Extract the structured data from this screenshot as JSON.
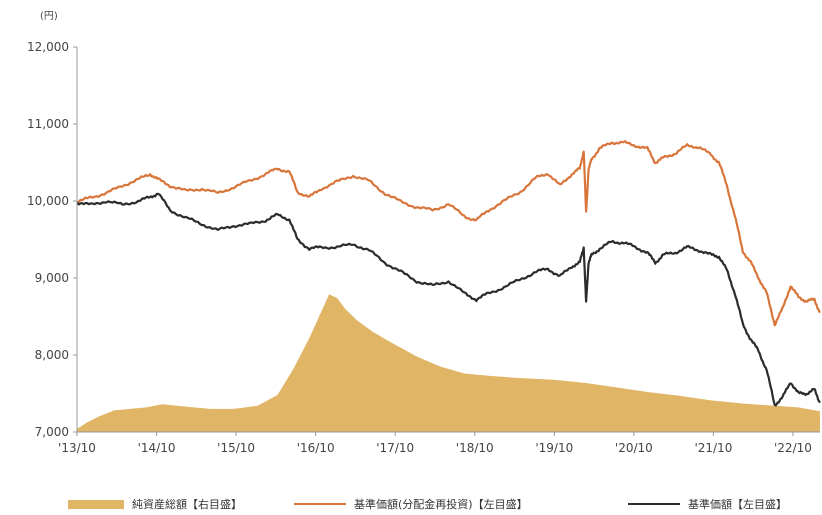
{
  "chart_data": {
    "type": "area",
    "unit_label": "(円)",
    "ylim": [
      7000,
      12000
    ],
    "y_ticks": [
      {
        "v": 7000,
        "label": "7,000"
      },
      {
        "v": 8000,
        "label": "8,000"
      },
      {
        "v": 9000,
        "label": "9,000"
      },
      {
        "v": 10000,
        "label": "10,000"
      },
      {
        "v": 11000,
        "label": "11,000"
      },
      {
        "v": 12000,
        "label": "12,000"
      }
    ],
    "xlim": [
      2013.83,
      2023.17
    ],
    "x_ticks": [
      {
        "v": 2013.83,
        "label": "'13/10"
      },
      {
        "v": 2014.83,
        "label": "'14/10"
      },
      {
        "v": 2015.83,
        "label": "'15/10"
      },
      {
        "v": 2016.83,
        "label": "'16/10"
      },
      {
        "v": 2017.83,
        "label": "'17/10"
      },
      {
        "v": 2018.83,
        "label": "'18/10"
      },
      {
        "v": 2019.83,
        "label": "'19/10"
      },
      {
        "v": 2020.83,
        "label": "'20/10"
      },
      {
        "v": 2021.83,
        "label": "'21/10"
      },
      {
        "v": 2022.83,
        "label": "'22/10"
      }
    ],
    "colors": {
      "area": "#e0b566",
      "orange": "#d8753a",
      "dark": "#2c2c2c",
      "axis": "#999999"
    },
    "series": [
      {
        "name": "純資産総額【右目盛】",
        "kind": "area",
        "x": [
          2013.83,
          2013.95,
          2014.1,
          2014.3,
          2014.5,
          2014.7,
          2014.9,
          2015.2,
          2015.5,
          2015.8,
          2016.1,
          2016.35,
          2016.55,
          2016.75,
          2016.9,
          2017.0,
          2017.1,
          2017.2,
          2017.35,
          2017.55,
          2017.8,
          2018.1,
          2018.4,
          2018.7,
          2019.0,
          2019.4,
          2019.8,
          2020.2,
          2020.6,
          2021.0,
          2021.4,
          2021.8,
          2022.2,
          2022.6,
          2022.9,
          2023.17
        ],
        "values": [
          7040,
          7120,
          7200,
          7280,
          7300,
          7320,
          7360,
          7330,
          7300,
          7300,
          7340,
          7480,
          7820,
          8220,
          8560,
          8790,
          8740,
          8600,
          8450,
          8300,
          8150,
          7980,
          7850,
          7760,
          7730,
          7700,
          7680,
          7640,
          7580,
          7520,
          7470,
          7410,
          7370,
          7340,
          7320,
          7270
        ]
      },
      {
        "name": "基準価額(分配金再投資)【左目盛】",
        "kind": "line",
        "x": [
          2013.83,
          2014.0,
          2014.2,
          2014.4,
          2014.6,
          2014.75,
          2014.85,
          2015.0,
          2015.2,
          2015.4,
          2015.6,
          2015.8,
          2016.0,
          2016.2,
          2016.35,
          2016.5,
          2016.6,
          2016.75,
          2016.9,
          2017.1,
          2017.3,
          2017.5,
          2017.7,
          2017.9,
          2018.1,
          2018.3,
          2018.5,
          2018.7,
          2018.85,
          2019.0,
          2019.2,
          2019.4,
          2019.6,
          2019.75,
          2019.9,
          2020.05,
          2020.15,
          2020.2,
          2020.23,
          2020.26,
          2020.3,
          2020.4,
          2020.55,
          2020.7,
          2020.85,
          2021.0,
          2021.1,
          2021.2,
          2021.35,
          2021.5,
          2021.65,
          2021.8,
          2021.9,
          2022.0,
          2022.1,
          2022.2,
          2022.3,
          2022.4,
          2022.5,
          2022.6,
          2022.7,
          2022.8,
          2022.9,
          2023.0,
          2023.1,
          2023.17
        ],
        "values": [
          9980,
          10050,
          10100,
          10200,
          10280,
          10350,
          10280,
          10200,
          10130,
          10160,
          10100,
          10180,
          10260,
          10350,
          10420,
          10380,
          10120,
          10050,
          10160,
          10250,
          10330,
          10260,
          10100,
          9990,
          9920,
          9880,
          9960,
          9800,
          9750,
          9880,
          10000,
          10120,
          10300,
          10360,
          10200,
          10350,
          10420,
          10650,
          9850,
          10400,
          10550,
          10680,
          10760,
          10760,
          10720,
          10680,
          10500,
          10560,
          10620,
          10720,
          10700,
          10600,
          10500,
          10200,
          9800,
          9350,
          9200,
          9000,
          8800,
          8400,
          8600,
          8900,
          8750,
          8700,
          8720,
          8550
        ]
      },
      {
        "name": "基準価額【左目盛】",
        "kind": "line",
        "x": [
          2013.83,
          2014.0,
          2014.2,
          2014.4,
          2014.6,
          2014.75,
          2014.85,
          2015.0,
          2015.2,
          2015.4,
          2015.6,
          2015.8,
          2016.0,
          2016.2,
          2016.35,
          2016.5,
          2016.6,
          2016.75,
          2016.9,
          2017.1,
          2017.3,
          2017.5,
          2017.7,
          2017.9,
          2018.1,
          2018.3,
          2018.5,
          2018.7,
          2018.85,
          2019.0,
          2019.2,
          2019.4,
          2019.6,
          2019.75,
          2019.9,
          2020.05,
          2020.15,
          2020.2,
          2020.23,
          2020.26,
          2020.3,
          2020.4,
          2020.55,
          2020.7,
          2020.85,
          2021.0,
          2021.1,
          2021.2,
          2021.35,
          2021.5,
          2021.65,
          2021.8,
          2021.9,
          2022.0,
          2022.1,
          2022.2,
          2022.3,
          2022.4,
          2022.5,
          2022.6,
          2022.7,
          2022.8,
          2022.9,
          2023.0,
          2023.1,
          2023.17
        ],
        "values": [
          9980,
          9950,
          10000,
          9950,
          10000,
          10050,
          10100,
          9880,
          9780,
          9700,
          9620,
          9680,
          9700,
          9750,
          9820,
          9760,
          9500,
          9380,
          9400,
          9400,
          9440,
          9360,
          9200,
          9080,
          8960,
          8900,
          8960,
          8800,
          8720,
          8800,
          8880,
          8980,
          9080,
          9120,
          9020,
          9150,
          9200,
          9400,
          8680,
          9200,
          9300,
          9380,
          9470,
          9460,
          9400,
          9330,
          9200,
          9300,
          9330,
          9400,
          9360,
          9300,
          9280,
          9100,
          8800,
          8400,
          8200,
          8050,
          7800,
          7350,
          7450,
          7650,
          7500,
          7500,
          7550,
          7380
        ]
      }
    ]
  }
}
